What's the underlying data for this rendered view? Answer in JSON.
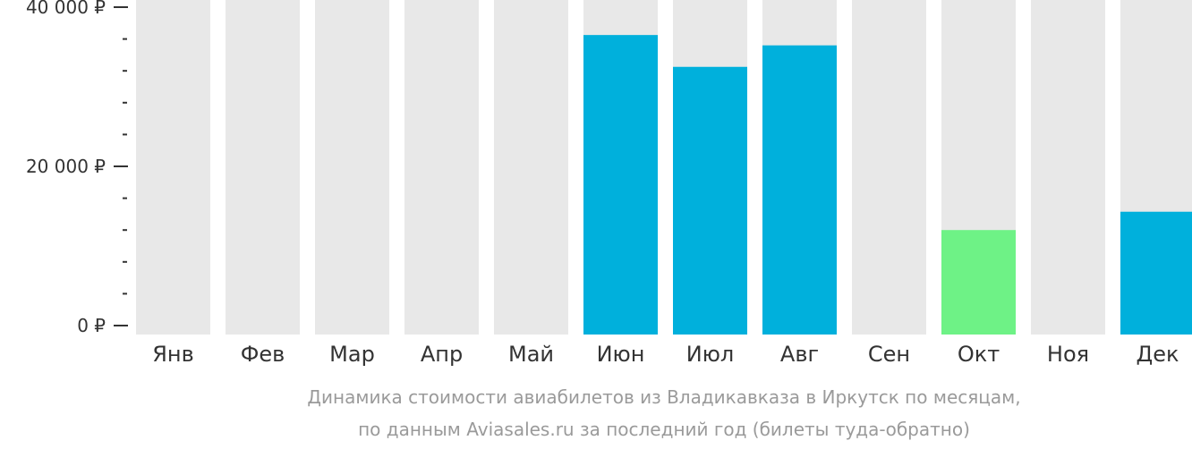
{
  "chart_data": {
    "type": "bar",
    "categories": [
      "Янв",
      "Фев",
      "Мар",
      "Апр",
      "Май",
      "Июн",
      "Июл",
      "Авг",
      "Сен",
      "Окт",
      "Ноя",
      "Дек"
    ],
    "values": [
      null,
      null,
      null,
      null,
      null,
      36500,
      32500,
      35200,
      null,
      12000,
      null,
      14300
    ],
    "ylim": [
      0,
      40000
    ],
    "yticks": [
      {
        "value": 0,
        "label": "0 ₽"
      },
      {
        "value": 20000,
        "label": "20 000 ₽"
      },
      {
        "value": 40000,
        "label": "40 000 ₽"
      }
    ],
    "minor_tick_step": 4000,
    "caption": [
      "Динамика стоимости авиабилетов из Владикавказа в Иркутск по месяцам,",
      "по данным Aviasales.ru за последний год (билеты туда-обратно)"
    ],
    "highlight_category": "Окт",
    "colors": {
      "bar": "#00b0dc",
      "highlight": "#6ef286",
      "background_bar": "#e8e8e8",
      "axis": "#333333",
      "caption": "#9a9a9a"
    }
  }
}
